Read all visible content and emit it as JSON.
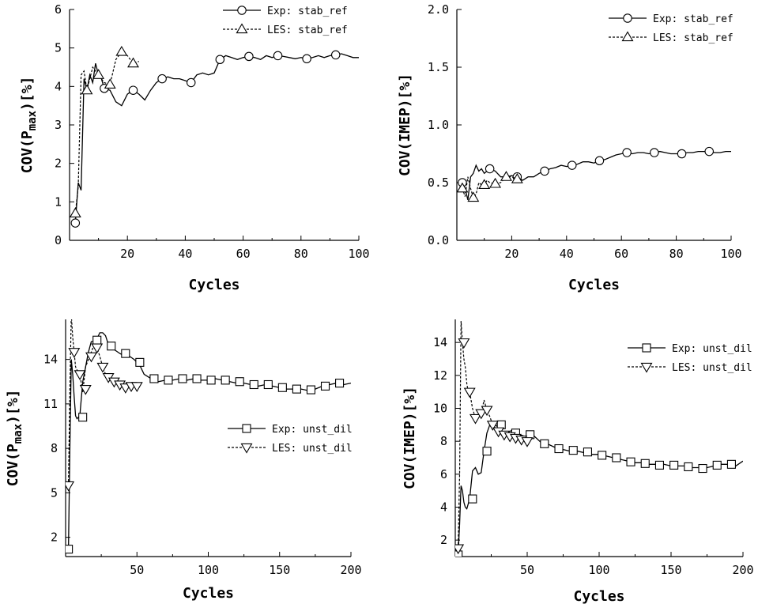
{
  "chart_data": [
    {
      "id": "a",
      "type": "line",
      "xlabel": "Cycles",
      "ylabel": "COV(P_max)[%]",
      "ylabel_main": "COV(P",
      "ylabel_sub": "max",
      "ylabel_tail": ")[%]",
      "xlim": [
        0,
        100
      ],
      "ylim": [
        0,
        6
      ],
      "xticks": [
        20,
        40,
        60,
        80,
        100
      ],
      "yticks": [
        0,
        1,
        2,
        3,
        4,
        5,
        6
      ],
      "legend_position": "top-right",
      "series": [
        {
          "name": "Exp: stab_ref",
          "marker": "circle",
          "style": "solid",
          "x": [
            2,
            3,
            4,
            5,
            6,
            7,
            8,
            9,
            10,
            11,
            12,
            14,
            16,
            18,
            20,
            22,
            24,
            26,
            28,
            30,
            32,
            34,
            36,
            38,
            40,
            42,
            44,
            46,
            48,
            50,
            52,
            54,
            56,
            58,
            60,
            62,
            64,
            66,
            68,
            70,
            72,
            74,
            76,
            78,
            80,
            82,
            84,
            86,
            88,
            90,
            92,
            94,
            96,
            98,
            100
          ],
          "y": [
            0.45,
            1.5,
            1.3,
            4.2,
            3.9,
            4.3,
            4.1,
            4.6,
            4.3,
            4.2,
            3.95,
            3.9,
            3.6,
            3.5,
            3.8,
            3.9,
            3.8,
            3.65,
            3.9,
            4.1,
            4.2,
            4.25,
            4.2,
            4.2,
            4.15,
            4.1,
            4.3,
            4.35,
            4.3,
            4.35,
            4.7,
            4.8,
            4.75,
            4.7,
            4.75,
            4.78,
            4.75,
            4.7,
            4.8,
            4.75,
            4.8,
            4.78,
            4.75,
            4.72,
            4.75,
            4.72,
            4.75,
            4.8,
            4.75,
            4.8,
            4.82,
            4.85,
            4.8,
            4.75,
            4.75
          ],
          "marker_x": [
            2,
            12,
            22,
            32,
            42,
            52,
            62,
            72,
            82,
            92
          ],
          "marker_y": [
            0.45,
            3.95,
            3.9,
            4.2,
            4.1,
            4.7,
            4.78,
            4.8,
            4.72,
            4.82
          ]
        },
        {
          "name": "LES: stab_ref",
          "marker": "triangle-up",
          "style": "dashed",
          "x": [
            2,
            3,
            4,
            5,
            6,
            7,
            8,
            9,
            10,
            12,
            14,
            16,
            18,
            20,
            22,
            24
          ],
          "y": [
            0.7,
            1.4,
            4.3,
            4.4,
            3.9,
            4.2,
            4.5,
            4.4,
            4.3,
            4.1,
            4.05,
            4.7,
            4.9,
            4.8,
            4.6,
            4.65
          ],
          "marker_x": [
            2,
            6,
            10,
            14,
            18,
            22
          ],
          "marker_y": [
            0.7,
            3.9,
            4.3,
            4.05,
            4.9,
            4.6
          ]
        }
      ]
    },
    {
      "id": "b",
      "type": "line",
      "xlabel": "Cycles",
      "ylabel": "COV(IMEP)[%]",
      "xlim": [
        0,
        100
      ],
      "ylim": [
        0,
        2.0
      ],
      "xticks": [
        20,
        40,
        60,
        80,
        100
      ],
      "yticks": [
        0.0,
        0.5,
        1.0,
        1.5,
        2.0
      ],
      "ytick_labels": [
        "0.0",
        "0.5",
        "1.0",
        "1.5",
        "2.0"
      ],
      "legend_position": "top-right",
      "series": [
        {
          "name": "Exp: stab_ref",
          "marker": "circle",
          "style": "solid",
          "x": [
            2,
            3,
            4,
            5,
            6,
            7,
            8,
            9,
            10,
            12,
            14,
            16,
            18,
            20,
            22,
            24,
            26,
            28,
            30,
            32,
            34,
            36,
            38,
            40,
            42,
            44,
            46,
            48,
            50,
            52,
            54,
            56,
            58,
            60,
            62,
            64,
            66,
            68,
            70,
            72,
            74,
            76,
            78,
            80,
            82,
            84,
            86,
            88,
            90,
            92,
            94,
            96,
            98,
            100
          ],
          "y": [
            0.5,
            0.45,
            0.35,
            0.55,
            0.58,
            0.65,
            0.6,
            0.62,
            0.58,
            0.62,
            0.6,
            0.55,
            0.55,
            0.56,
            0.55,
            0.52,
            0.55,
            0.55,
            0.58,
            0.6,
            0.62,
            0.63,
            0.65,
            0.64,
            0.65,
            0.66,
            0.68,
            0.68,
            0.67,
            0.69,
            0.7,
            0.72,
            0.74,
            0.75,
            0.76,
            0.75,
            0.76,
            0.76,
            0.75,
            0.76,
            0.77,
            0.76,
            0.75,
            0.75,
            0.75,
            0.76,
            0.76,
            0.77,
            0.77,
            0.77,
            0.76,
            0.76,
            0.77,
            0.77
          ],
          "marker_x": [
            2,
            12,
            22,
            32,
            42,
            52,
            62,
            72,
            82,
            92
          ],
          "marker_y": [
            0.5,
            0.62,
            0.55,
            0.6,
            0.65,
            0.69,
            0.76,
            0.76,
            0.75,
            0.77
          ]
        },
        {
          "name": "LES: stab_ref",
          "marker": "triangle-up",
          "style": "dashed",
          "x": [
            2,
            3,
            4,
            5,
            6,
            7,
            8,
            9,
            10,
            11,
            12,
            14,
            16,
            18,
            20,
            22,
            24
          ],
          "y": [
            0.45,
            0.38,
            0.55,
            0.45,
            0.37,
            0.4,
            0.5,
            0.48,
            0.48,
            0.52,
            0.5,
            0.49,
            0.5,
            0.55,
            0.55,
            0.53,
            0.52
          ],
          "marker_x": [
            2,
            6,
            10,
            14,
            18,
            22
          ],
          "marker_y": [
            0.45,
            0.37,
            0.48,
            0.49,
            0.55,
            0.53
          ]
        }
      ]
    },
    {
      "id": "c",
      "type": "line",
      "xlabel": "Cycles",
      "ylabel": "COV(P_max)[%]",
      "ylabel_main": "COV(P",
      "ylabel_sub": "max",
      "ylabel_tail": ")[%]",
      "xlim": [
        0,
        200
      ],
      "ylim": [
        0.7,
        16.7
      ],
      "xticks": [
        50,
        100,
        150,
        200
      ],
      "yticks": [
        2,
        5,
        8,
        11,
        14
      ],
      "legend_position": "center-right",
      "series": [
        {
          "name": "Exp: unst_dil",
          "marker": "square",
          "style": "solid",
          "x": [
            2,
            3,
            4,
            5,
            6,
            7,
            8,
            10,
            12,
            14,
            16,
            18,
            20,
            22,
            24,
            26,
            28,
            30,
            32,
            35,
            38,
            40,
            42,
            45,
            48,
            50,
            52,
            55,
            60,
            65,
            70,
            75,
            80,
            85,
            90,
            95,
            100,
            105,
            110,
            115,
            120,
            125,
            130,
            135,
            140,
            145,
            150,
            155,
            160,
            165,
            170,
            175,
            180,
            185,
            190,
            195,
            200
          ],
          "y": [
            1.2,
            8.0,
            14.0,
            13.0,
            11.5,
            10.2,
            10.0,
            10.2,
            12.5,
            13.5,
            14.5,
            15.2,
            15.2,
            15.4,
            15.8,
            15.8,
            15.6,
            15.0,
            14.8,
            14.6,
            14.4,
            14.3,
            14.4,
            14.2,
            14.0,
            13.8,
            13.6,
            13.0,
            12.7,
            12.5,
            12.6,
            12.6,
            12.7,
            12.6,
            12.7,
            12.6,
            12.6,
            12.7,
            12.6,
            12.5,
            12.4,
            12.4,
            12.3,
            12.2,
            12.3,
            12.2,
            12.1,
            12.0,
            12.0,
            12.0,
            11.9,
            12.0,
            12.2,
            12.3,
            12.4,
            12.3,
            12.4
          ],
          "marker_x": [
            2,
            12,
            22,
            32,
            42,
            52,
            62,
            72,
            82,
            92,
            102,
            112,
            122,
            132,
            142,
            152,
            162,
            172,
            182,
            192
          ],
          "marker_y": [
            1.2,
            10.1,
            15.3,
            14.9,
            14.4,
            13.8,
            12.7,
            12.6,
            12.7,
            12.7,
            12.6,
            12.6,
            12.5,
            12.3,
            12.3,
            12.1,
            12.0,
            11.95,
            12.2,
            12.4
          ]
        },
        {
          "name": "LES: unst_dil",
          "marker": "triangle-down",
          "style": "dashed",
          "x": [
            2,
            3,
            4,
            5,
            6,
            7,
            8,
            10,
            12,
            14,
            16,
            18,
            20,
            22,
            24,
            26,
            28,
            30,
            32,
            34,
            36,
            38,
            40,
            42,
            44,
            46,
            48,
            50
          ],
          "y": [
            5.5,
            12.0,
            17.0,
            15.5,
            14.5,
            13.5,
            13.3,
            13.0,
            11.8,
            13.5,
            14.0,
            14.5,
            15.0,
            14.8,
            14.2,
            13.5,
            13.0,
            12.8,
            12.6,
            12.5,
            12.4,
            12.3,
            12.2,
            12.1,
            12.3,
            12.2,
            12.3,
            12.2
          ],
          "marker_x": [
            2,
            6,
            10,
            14,
            18,
            22,
            26,
            30,
            34,
            38,
            42,
            46,
            50
          ],
          "marker_y": [
            5.5,
            14.5,
            13.0,
            12.0,
            14.2,
            14.8,
            13.5,
            12.8,
            12.5,
            12.3,
            12.1,
            12.2,
            12.2
          ]
        }
      ]
    },
    {
      "id": "d",
      "type": "line",
      "xlabel": "Cycles",
      "ylabel": "COV(IMEP)[%]",
      "xlim": [
        0,
        200
      ],
      "ylim": [
        1,
        15.4
      ],
      "xticks": [
        50,
        100,
        150,
        200
      ],
      "yticks": [
        2,
        4,
        6,
        8,
        10,
        12,
        14
      ],
      "legend_position": "top-right",
      "series": [
        {
          "name": "Exp: unst_dil",
          "marker": "square",
          "style": "solid",
          "x": [
            2,
            3,
            4,
            5,
            6,
            7,
            8,
            10,
            12,
            14,
            16,
            18,
            20,
            22,
            24,
            26,
            28,
            30,
            32,
            35,
            38,
            40,
            42,
            45,
            48,
            50,
            52,
            55,
            60,
            65,
            70,
            75,
            80,
            85,
            90,
            95,
            100,
            105,
            110,
            115,
            120,
            125,
            130,
            135,
            140,
            145,
            150,
            155,
            160,
            165,
            170,
            175,
            180,
            185,
            190,
            195,
            200
          ],
          "y": [
            1.1,
            3.0,
            5.3,
            5.0,
            4.3,
            4.0,
            3.9,
            4.5,
            6.2,
            6.4,
            6.0,
            6.1,
            7.4,
            8.5,
            9.0,
            9.2,
            9.0,
            8.8,
            8.6,
            8.5,
            8.6,
            8.7,
            8.5,
            8.4,
            8.3,
            8.2,
            8.5,
            8.3,
            7.9,
            7.8,
            7.6,
            7.5,
            7.4,
            7.4,
            7.3,
            7.2,
            7.2,
            7.1,
            7.0,
            6.9,
            6.8,
            6.7,
            6.7,
            6.6,
            6.6,
            6.6,
            6.5,
            6.5,
            6.5,
            6.4,
            6.4,
            6.4,
            6.5,
            6.6,
            6.6,
            6.5,
            6.8
          ],
          "marker_x": [
            2,
            12,
            22,
            32,
            42,
            52,
            62,
            72,
            82,
            92,
            102,
            112,
            122,
            132,
            142,
            152,
            162,
            172,
            182,
            192
          ],
          "marker_y": [
            1.1,
            4.5,
            7.4,
            9.0,
            8.5,
            8.4,
            7.85,
            7.55,
            7.45,
            7.35,
            7.15,
            7.0,
            6.75,
            6.65,
            6.55,
            6.55,
            6.45,
            6.35,
            6.55,
            6.6
          ]
        },
        {
          "name": "LES: unst_dil",
          "marker": "triangle-down",
          "style": "dashed",
          "x": [
            2,
            3,
            4,
            5,
            6,
            7,
            8,
            9,
            10,
            12,
            14,
            16,
            18,
            20,
            22,
            24,
            26,
            28,
            30,
            32,
            34,
            36,
            38,
            40,
            42,
            44,
            46,
            48,
            50
          ],
          "y": [
            1.5,
            6.0,
            15.3,
            14.0,
            13.0,
            12.5,
            11.5,
            11.0,
            11.0,
            10.0,
            9.4,
            9.6,
            9.7,
            10.5,
            9.9,
            9.5,
            9.0,
            8.8,
            8.6,
            8.5,
            8.4,
            8.3,
            8.3,
            8.2,
            8.2,
            8.0,
            8.1,
            8.1,
            8.0
          ],
          "marker_x": [
            2,
            6,
            10,
            14,
            18,
            22,
            26,
            30,
            34,
            38,
            42,
            46,
            50
          ],
          "marker_y": [
            1.5,
            14.0,
            11.0,
            9.4,
            9.7,
            9.9,
            9.0,
            8.6,
            8.4,
            8.3,
            8.2,
            8.1,
            8.0
          ]
        }
      ]
    }
  ]
}
